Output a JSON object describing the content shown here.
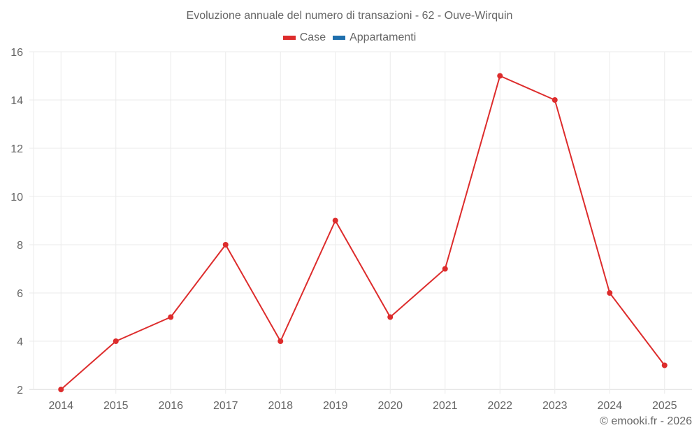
{
  "chart_data": {
    "type": "line",
    "title": "Evoluzione annuale del numero di transazioni - 62 - Ouve-Wirquin",
    "xlabel": "",
    "ylabel": "",
    "categories": [
      "2014",
      "2015",
      "2016",
      "2017",
      "2018",
      "2019",
      "2020",
      "2021",
      "2022",
      "2023",
      "2024",
      "2025"
    ],
    "series": [
      {
        "name": "Case",
        "color": "#dd2c2c",
        "values": [
          2,
          4,
          5,
          8,
          4,
          9,
          5,
          7,
          15,
          14,
          6,
          3
        ]
      },
      {
        "name": "Appartamenti",
        "color": "#1f6fad",
        "values": []
      }
    ],
    "ylim": [
      2,
      16
    ],
    "yticks": [
      2,
      4,
      6,
      8,
      10,
      12,
      14,
      16
    ],
    "grid": true,
    "legend_position": "top"
  },
  "legend": {
    "items": [
      {
        "label": "Case",
        "color": "#dd2c2c"
      },
      {
        "label": "Appartamenti",
        "color": "#1f6fad"
      }
    ]
  },
  "credit": "© emooki.fr - 2026"
}
